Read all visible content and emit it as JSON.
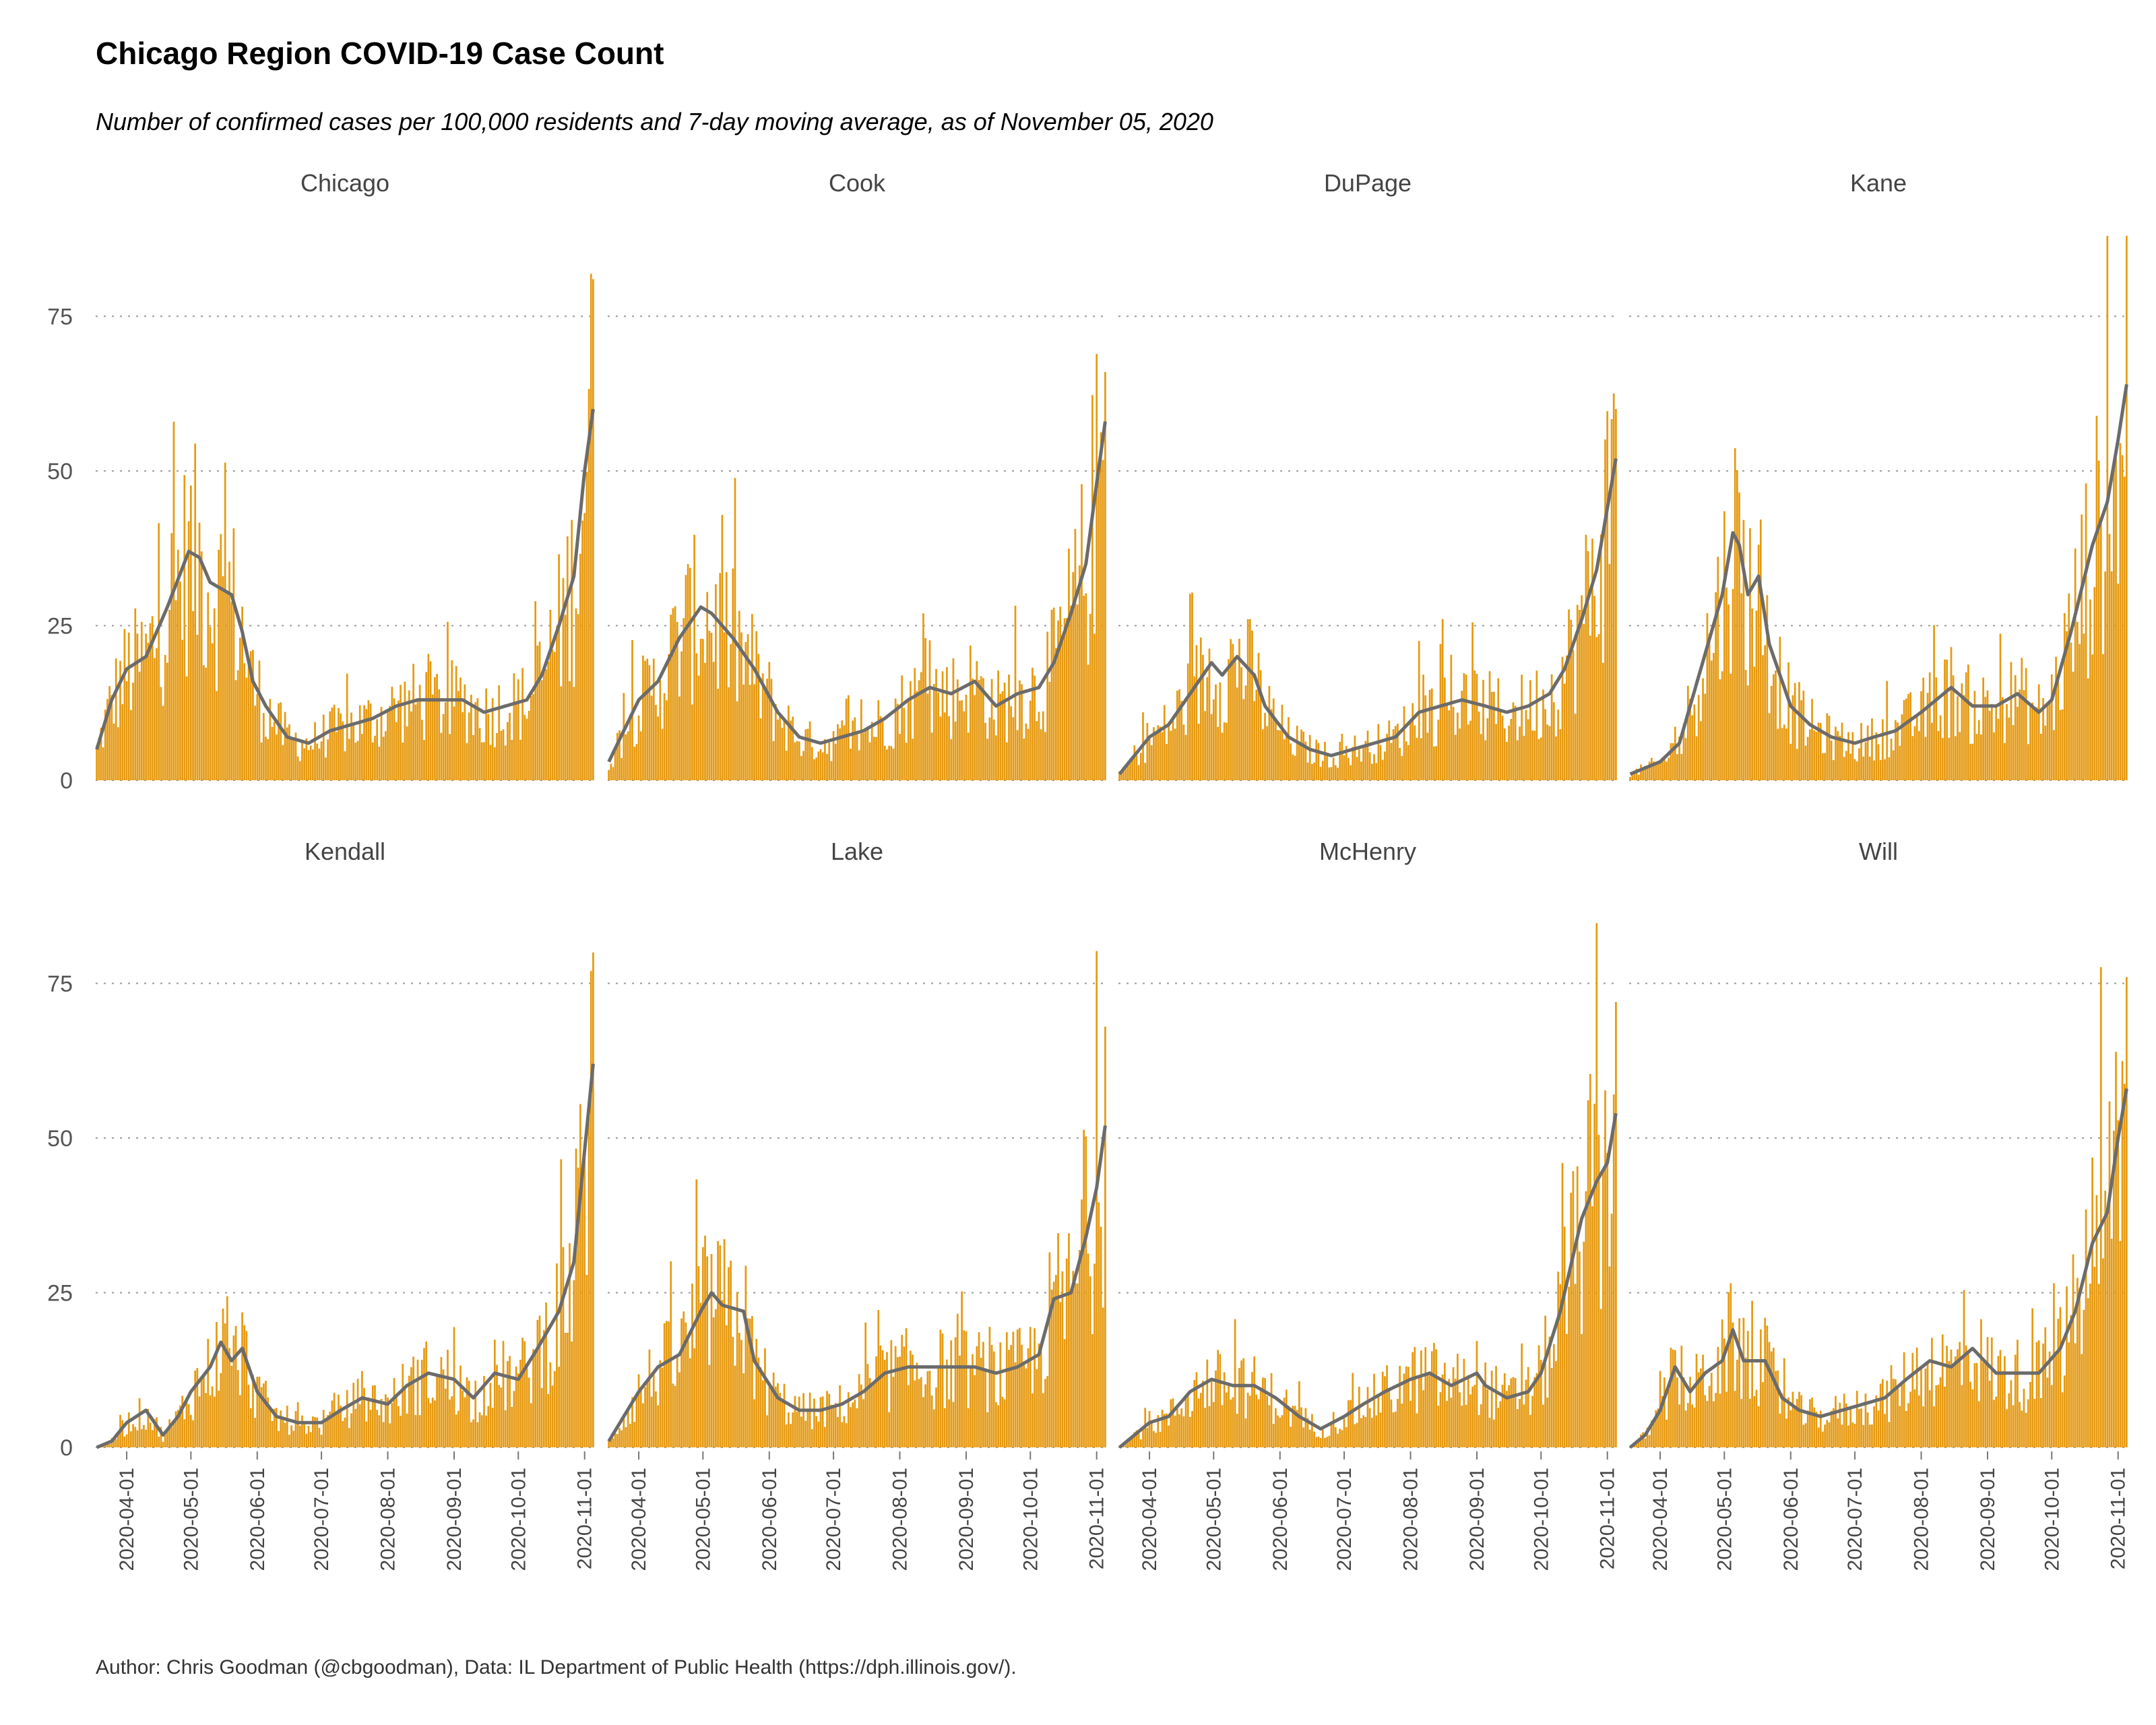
{
  "title": "Chicago Region COVID-19 Case Count",
  "subtitle": "Number of confirmed cases per 100,000 residents and 7-day moving average, as of November 05, 2020",
  "caption": "Author: Chris Goodman (@cbgoodman), Data: IL Department of Public Health (https://dph.illinois.gov/).",
  "colors": {
    "bar": "#E69A12",
    "line": "#6b6b6b",
    "grid": "#9a9a9a"
  },
  "chart_data": {
    "type": "bar",
    "overlay": "7-day moving average line",
    "facets": [
      "Chicago",
      "Cook",
      "DuPage",
      "Kane",
      "Kendall",
      "Lake",
      "McHenry",
      "Will"
    ],
    "facet_layout": {
      "columns": 4,
      "rows": 2
    },
    "x_start": "2020-03-18",
    "x_end": "2020-11-05",
    "x_ticks": [
      "2020-04-01",
      "2020-05-01",
      "2020-06-01",
      "2020-07-01",
      "2020-08-01",
      "2020-09-01",
      "2020-10-01",
      "2020-11-01"
    ],
    "y_ticks": [
      0,
      25,
      50,
      75
    ],
    "ylim": [
      0,
      88
    ],
    "y_grid": true,
    "series": [
      {
        "name": "Chicago",
        "peak": 81,
        "ma": [
          [
            "2020-03-18",
            5
          ],
          [
            "2020-03-25",
            13
          ],
          [
            "2020-04-01",
            18
          ],
          [
            "2020-04-10",
            20
          ],
          [
            "2020-04-20",
            28
          ],
          [
            "2020-04-30",
            37
          ],
          [
            "2020-05-05",
            36
          ],
          [
            "2020-05-10",
            32
          ],
          [
            "2020-05-20",
            30
          ],
          [
            "2020-05-25",
            24
          ],
          [
            "2020-05-30",
            16
          ],
          [
            "2020-06-05",
            12
          ],
          [
            "2020-06-15",
            7
          ],
          [
            "2020-06-25",
            6
          ],
          [
            "2020-07-05",
            8
          ],
          [
            "2020-07-15",
            9
          ],
          [
            "2020-07-25",
            10
          ],
          [
            "2020-08-05",
            12
          ],
          [
            "2020-08-15",
            13
          ],
          [
            "2020-08-25",
            13
          ],
          [
            "2020-09-05",
            13
          ],
          [
            "2020-09-15",
            11
          ],
          [
            "2020-09-25",
            12
          ],
          [
            "2020-10-05",
            13
          ],
          [
            "2020-10-12",
            17
          ],
          [
            "2020-10-20",
            25
          ],
          [
            "2020-10-27",
            33
          ],
          [
            "2020-11-01",
            50
          ],
          [
            "2020-11-05",
            60
          ]
        ]
      },
      {
        "name": "Cook",
        "peak": 66,
        "ma": [
          [
            "2020-03-18",
            3
          ],
          [
            "2020-03-25",
            8
          ],
          [
            "2020-04-01",
            13
          ],
          [
            "2020-04-10",
            16
          ],
          [
            "2020-04-20",
            23
          ],
          [
            "2020-04-30",
            28
          ],
          [
            "2020-05-05",
            27
          ],
          [
            "2020-05-15",
            23
          ],
          [
            "2020-05-25",
            18
          ],
          [
            "2020-06-05",
            11
          ],
          [
            "2020-06-15",
            7
          ],
          [
            "2020-06-25",
            6
          ],
          [
            "2020-07-05",
            7
          ],
          [
            "2020-07-15",
            8
          ],
          [
            "2020-07-25",
            10
          ],
          [
            "2020-08-05",
            13
          ],
          [
            "2020-08-15",
            15
          ],
          [
            "2020-08-25",
            14
          ],
          [
            "2020-09-05",
            16
          ],
          [
            "2020-09-15",
            12
          ],
          [
            "2020-09-25",
            14
          ],
          [
            "2020-10-05",
            15
          ],
          [
            "2020-10-12",
            19
          ],
          [
            "2020-10-20",
            27
          ],
          [
            "2020-10-27",
            35
          ],
          [
            "2020-11-01",
            48
          ],
          [
            "2020-11-05",
            58
          ]
        ]
      },
      {
        "name": "DuPage",
        "peak": 60,
        "ma": [
          [
            "2020-03-18",
            1
          ],
          [
            "2020-03-25",
            4
          ],
          [
            "2020-04-01",
            7
          ],
          [
            "2020-04-10",
            9
          ],
          [
            "2020-04-20",
            14
          ],
          [
            "2020-04-30",
            19
          ],
          [
            "2020-05-05",
            17
          ],
          [
            "2020-05-12",
            20
          ],
          [
            "2020-05-20",
            17
          ],
          [
            "2020-05-25",
            12
          ],
          [
            "2020-06-05",
            7
          ],
          [
            "2020-06-15",
            5
          ],
          [
            "2020-06-25",
            4
          ],
          [
            "2020-07-05",
            5
          ],
          [
            "2020-07-15",
            6
          ],
          [
            "2020-07-25",
            7
          ],
          [
            "2020-08-05",
            11
          ],
          [
            "2020-08-15",
            12
          ],
          [
            "2020-08-25",
            13
          ],
          [
            "2020-09-05",
            12
          ],
          [
            "2020-09-15",
            11
          ],
          [
            "2020-09-25",
            12
          ],
          [
            "2020-10-05",
            14
          ],
          [
            "2020-10-12",
            18
          ],
          [
            "2020-10-20",
            26
          ],
          [
            "2020-10-27",
            34
          ],
          [
            "2020-11-01",
            44
          ],
          [
            "2020-11-05",
            52
          ]
        ]
      },
      {
        "name": "Kane",
        "peak": 88,
        "ma": [
          [
            "2020-03-18",
            1
          ],
          [
            "2020-03-25",
            2
          ],
          [
            "2020-04-01",
            3
          ],
          [
            "2020-04-10",
            6
          ],
          [
            "2020-04-20",
            18
          ],
          [
            "2020-04-30",
            30
          ],
          [
            "2020-05-05",
            40
          ],
          [
            "2020-05-08",
            38
          ],
          [
            "2020-05-12",
            30
          ],
          [
            "2020-05-17",
            33
          ],
          [
            "2020-05-22",
            22
          ],
          [
            "2020-06-01",
            12
          ],
          [
            "2020-06-10",
            9
          ],
          [
            "2020-06-20",
            7
          ],
          [
            "2020-07-01",
            6
          ],
          [
            "2020-07-10",
            7
          ],
          [
            "2020-07-20",
            8
          ],
          [
            "2020-08-01",
            11
          ],
          [
            "2020-08-15",
            15
          ],
          [
            "2020-08-25",
            12
          ],
          [
            "2020-09-05",
            12
          ],
          [
            "2020-09-15",
            14
          ],
          [
            "2020-09-25",
            11
          ],
          [
            "2020-10-01",
            13
          ],
          [
            "2020-10-10",
            24
          ],
          [
            "2020-10-20",
            38
          ],
          [
            "2020-10-27",
            45
          ],
          [
            "2020-11-01",
            55
          ],
          [
            "2020-11-05",
            64
          ]
        ]
      },
      {
        "name": "Kendall",
        "peak": 80,
        "ma": [
          [
            "2020-03-18",
            0
          ],
          [
            "2020-03-25",
            1
          ],
          [
            "2020-04-01",
            4
          ],
          [
            "2020-04-10",
            6
          ],
          [
            "2020-04-18",
            2
          ],
          [
            "2020-04-25",
            5
          ],
          [
            "2020-05-01",
            9
          ],
          [
            "2020-05-10",
            13
          ],
          [
            "2020-05-15",
            17
          ],
          [
            "2020-05-20",
            14
          ],
          [
            "2020-05-25",
            16
          ],
          [
            "2020-06-01",
            9
          ],
          [
            "2020-06-10",
            5
          ],
          [
            "2020-06-20",
            4
          ],
          [
            "2020-07-01",
            4
          ],
          [
            "2020-07-10",
            6
          ],
          [
            "2020-07-20",
            8
          ],
          [
            "2020-08-01",
            7
          ],
          [
            "2020-08-10",
            10
          ],
          [
            "2020-08-20",
            12
          ],
          [
            "2020-09-01",
            11
          ],
          [
            "2020-09-10",
            8
          ],
          [
            "2020-09-20",
            12
          ],
          [
            "2020-10-01",
            11
          ],
          [
            "2020-10-10",
            16
          ],
          [
            "2020-10-20",
            22
          ],
          [
            "2020-10-27",
            30
          ],
          [
            "2020-11-01",
            48
          ],
          [
            "2020-11-05",
            62
          ]
        ]
      },
      {
        "name": "Lake",
        "peak": 68,
        "ma": [
          [
            "2020-03-18",
            1
          ],
          [
            "2020-03-25",
            5
          ],
          [
            "2020-04-01",
            9
          ],
          [
            "2020-04-10",
            13
          ],
          [
            "2020-04-20",
            15
          ],
          [
            "2020-04-30",
            22
          ],
          [
            "2020-05-05",
            25
          ],
          [
            "2020-05-10",
            23
          ],
          [
            "2020-05-20",
            22
          ],
          [
            "2020-05-25",
            14
          ],
          [
            "2020-06-05",
            8
          ],
          [
            "2020-06-15",
            6
          ],
          [
            "2020-06-25",
            6
          ],
          [
            "2020-07-05",
            7
          ],
          [
            "2020-07-15",
            9
          ],
          [
            "2020-07-25",
            12
          ],
          [
            "2020-08-05",
            13
          ],
          [
            "2020-08-15",
            13
          ],
          [
            "2020-08-25",
            13
          ],
          [
            "2020-09-05",
            13
          ],
          [
            "2020-09-15",
            12
          ],
          [
            "2020-09-25",
            13
          ],
          [
            "2020-10-05",
            15
          ],
          [
            "2020-10-12",
            24
          ],
          [
            "2020-10-20",
            25
          ],
          [
            "2020-10-27",
            34
          ],
          [
            "2020-11-01",
            42
          ],
          [
            "2020-11-05",
            52
          ]
        ]
      },
      {
        "name": "McHenry",
        "peak": 72,
        "ma": [
          [
            "2020-03-18",
            0
          ],
          [
            "2020-03-25",
            2
          ],
          [
            "2020-04-01",
            4
          ],
          [
            "2020-04-10",
            5
          ],
          [
            "2020-04-20",
            9
          ],
          [
            "2020-04-30",
            11
          ],
          [
            "2020-05-10",
            10
          ],
          [
            "2020-05-20",
            10
          ],
          [
            "2020-05-30",
            8
          ],
          [
            "2020-06-10",
            5
          ],
          [
            "2020-06-20",
            3
          ],
          [
            "2020-07-01",
            5
          ],
          [
            "2020-07-10",
            7
          ],
          [
            "2020-07-20",
            9
          ],
          [
            "2020-08-01",
            11
          ],
          [
            "2020-08-10",
            12
          ],
          [
            "2020-08-20",
            10
          ],
          [
            "2020-09-01",
            12
          ],
          [
            "2020-09-05",
            10
          ],
          [
            "2020-09-15",
            8
          ],
          [
            "2020-09-25",
            9
          ],
          [
            "2020-10-01",
            12
          ],
          [
            "2020-10-10",
            22
          ],
          [
            "2020-10-20",
            37
          ],
          [
            "2020-10-27",
            43
          ],
          [
            "2020-11-01",
            46
          ],
          [
            "2020-11-05",
            54
          ]
        ]
      },
      {
        "name": "Will",
        "peak": 76,
        "ma": [
          [
            "2020-03-18",
            0
          ],
          [
            "2020-03-25",
            2
          ],
          [
            "2020-04-01",
            6
          ],
          [
            "2020-04-08",
            13
          ],
          [
            "2020-04-15",
            9
          ],
          [
            "2020-04-22",
            12
          ],
          [
            "2020-04-30",
            14
          ],
          [
            "2020-05-05",
            19
          ],
          [
            "2020-05-10",
            14
          ],
          [
            "2020-05-20",
            14
          ],
          [
            "2020-05-28",
            8
          ],
          [
            "2020-06-05",
            6
          ],
          [
            "2020-06-15",
            5
          ],
          [
            "2020-06-25",
            6
          ],
          [
            "2020-07-05",
            7
          ],
          [
            "2020-07-15",
            8
          ],
          [
            "2020-07-25",
            11
          ],
          [
            "2020-08-05",
            14
          ],
          [
            "2020-08-15",
            13
          ],
          [
            "2020-08-25",
            16
          ],
          [
            "2020-09-05",
            12
          ],
          [
            "2020-09-15",
            12
          ],
          [
            "2020-09-25",
            12
          ],
          [
            "2020-10-05",
            16
          ],
          [
            "2020-10-12",
            22
          ],
          [
            "2020-10-20",
            33
          ],
          [
            "2020-10-27",
            38
          ],
          [
            "2020-11-01",
            50
          ],
          [
            "2020-11-05",
            58
          ]
        ]
      }
    ]
  }
}
